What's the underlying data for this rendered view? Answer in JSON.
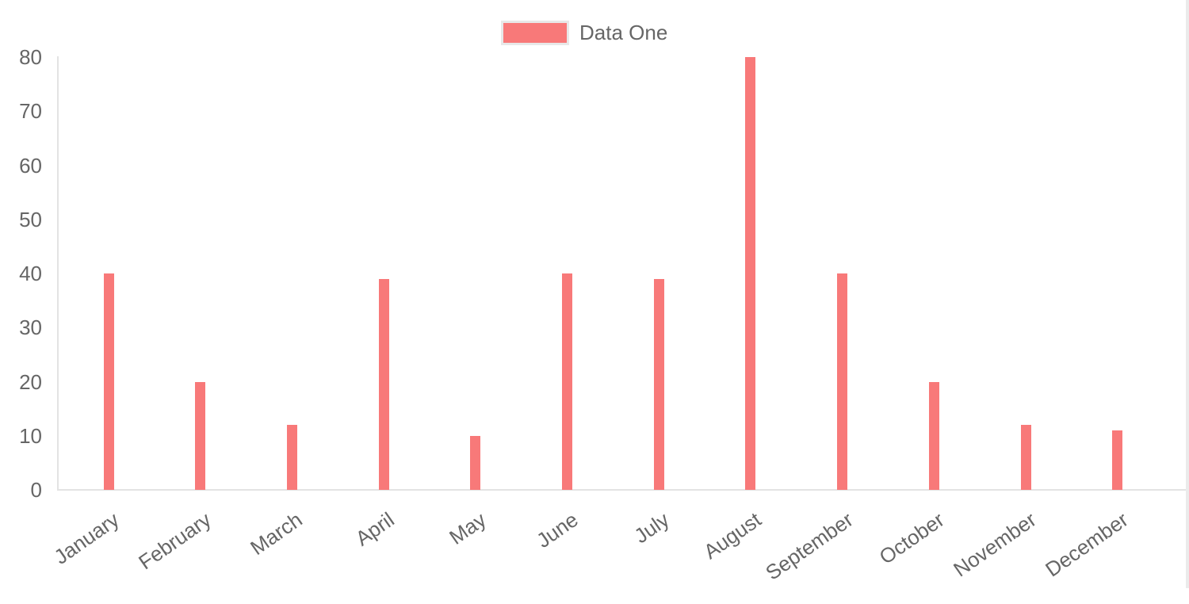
{
  "chart_data": {
    "type": "bar",
    "title": "",
    "categories": [
      "January",
      "February",
      "March",
      "April",
      "May",
      "June",
      "July",
      "August",
      "September",
      "October",
      "November",
      "December"
    ],
    "series": [
      {
        "name": "Data One",
        "values": [
          40,
          20,
          12,
          39,
          10,
          40,
          39,
          80,
          40,
          20,
          12,
          11
        ],
        "color": "#f87979"
      }
    ],
    "ylim": [
      0,
      80
    ],
    "yticks": [
      0,
      10,
      20,
      30,
      40,
      50,
      60,
      70,
      80
    ],
    "legend_position": "top",
    "grid": false,
    "colors": {
      "bar": "#f87979",
      "axis_line": "#e3e3e3",
      "right_border": "#ebebeb",
      "tick_text": "#666666",
      "legend_swatch_border": "#e8e8e8"
    }
  }
}
